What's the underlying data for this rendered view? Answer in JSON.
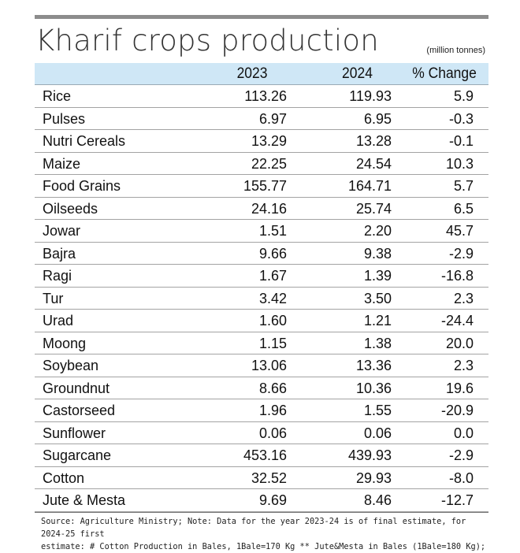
{
  "title": "Kharif crops production",
  "unit": "(million tonnes)",
  "columns": [
    "",
    "2023",
    "2024",
    "% Change"
  ],
  "rows": [
    {
      "crop": "Rice",
      "y2023": "113.26",
      "y2024": "119.93",
      "change": "5.9"
    },
    {
      "crop": "Pulses",
      "y2023": "6.97",
      "y2024": "6.95",
      "change": "-0.3"
    },
    {
      "crop": "Nutri Cereals",
      "y2023": "13.29",
      "y2024": "13.28",
      "change": "-0.1"
    },
    {
      "crop": "Maize",
      "y2023": "22.25",
      "y2024": "24.54",
      "change": "10.3"
    },
    {
      "crop": "Food Grains",
      "y2023": "155.77",
      "y2024": "164.71",
      "change": "5.7"
    },
    {
      "crop": "Oilseeds",
      "y2023": "24.16",
      "y2024": "25.74",
      "change": "6.5"
    },
    {
      "crop": "Jowar",
      "y2023": "1.51",
      "y2024": "2.20",
      "change": "45.7"
    },
    {
      "crop": "Bajra",
      "y2023": "9.66",
      "y2024": "9.38",
      "change": "-2.9"
    },
    {
      "crop": "Ragi",
      "y2023": "1.67",
      "y2024": "1.39",
      "change": "-16.8"
    },
    {
      "crop": "Tur",
      "y2023": "3.42",
      "y2024": "3.50",
      "change": "2.3"
    },
    {
      "crop": "Urad",
      "y2023": "1.60",
      "y2024": "1.21",
      "change": "-24.4"
    },
    {
      "crop": "Moong",
      "y2023": "1.15",
      "y2024": "1.38",
      "change": "20.0"
    },
    {
      "crop": "Soybean",
      "y2023": "13.06",
      "y2024": "13.36",
      "change": "2.3"
    },
    {
      "crop": "Groundnut",
      "y2023": "8.66",
      "y2024": "10.36",
      "change": "19.6"
    },
    {
      "crop": "Castorseed",
      "y2023": "1.96",
      "y2024": "1.55",
      "change": "-20.9"
    },
    {
      "crop": "Sunflower",
      "y2023": "0.06",
      "y2024": "0.06",
      "change": "0.0"
    },
    {
      "crop": "Sugarcane",
      "y2023": "453.16",
      "y2024": "439.93",
      "change": "-2.9"
    },
    {
      "crop": "Cotton",
      "y2023": "32.52",
      "y2024": "29.93",
      "change": "-8.0"
    },
    {
      "crop": "Jute & Mesta",
      "y2023": "9.69",
      "y2024": "8.46",
      "change": "-12.7"
    }
  ],
  "source_lines": [
    "Source: Agriculture Ministry;  Note: Data for the year 2023-24 is of final estimate, for 2024-25 first",
    "estimate:  # Cotton Production in Bales, 1Bale=170 Kg ** Jute&Mesta in Bales (1Bale=180 Kg);"
  ],
  "colors": {
    "header_bg": "#cfe7f6",
    "top_rule": "#8c8c8c"
  }
}
